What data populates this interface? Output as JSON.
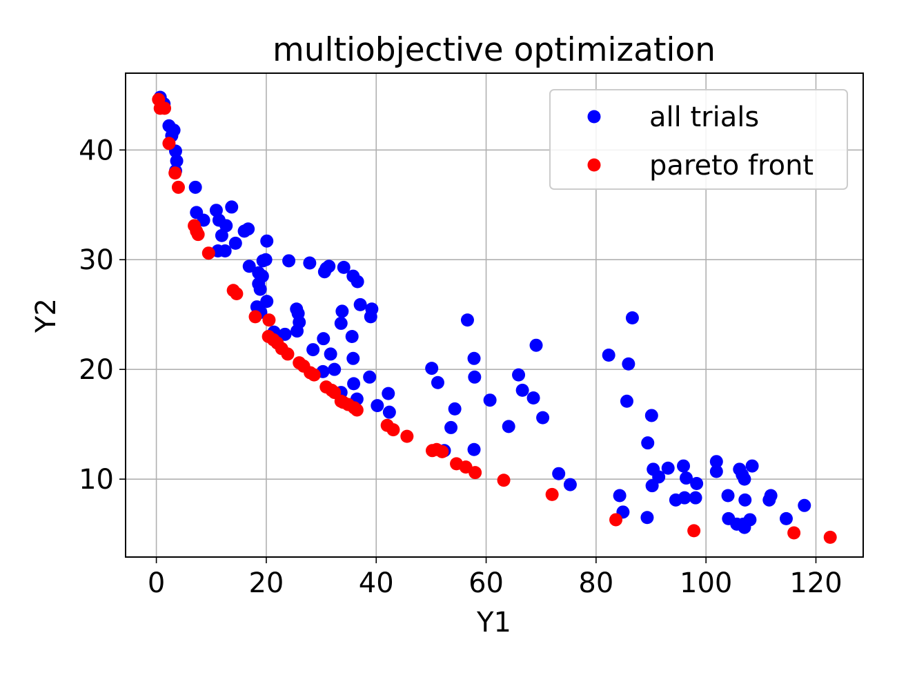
{
  "chart_data": {
    "type": "scatter",
    "title": "multiobjective optimization",
    "xlabel": "Y1",
    "ylabel": "Y2",
    "xlim": [
      -5.6,
      128.6
    ],
    "ylim": [
      2.9,
      47.0
    ],
    "xticks": [
      0,
      20,
      40,
      60,
      80,
      100,
      120
    ],
    "yticks": [
      10,
      20,
      30,
      40
    ],
    "grid": true,
    "legend_position": "top-right",
    "series": [
      {
        "name": "all trials",
        "color": "#0000ff",
        "points": [
          [
            0.7,
            44.8
          ],
          [
            1.4,
            44.2
          ],
          [
            2.3,
            42.2
          ],
          [
            3.2,
            41.8
          ],
          [
            2.8,
            41.3
          ],
          [
            3.5,
            39.9
          ],
          [
            3.7,
            39.0
          ],
          [
            3.5,
            38.1
          ],
          [
            7.1,
            36.6
          ],
          [
            7.3,
            34.3
          ],
          [
            8.6,
            33.6
          ],
          [
            10.9,
            34.5
          ],
          [
            13.7,
            34.8
          ],
          [
            11.4,
            33.6
          ],
          [
            12.7,
            33.1
          ],
          [
            16.0,
            32.6
          ],
          [
            16.7,
            32.8
          ],
          [
            11.9,
            32.2
          ],
          [
            14.4,
            31.5
          ],
          [
            12.5,
            30.8
          ],
          [
            11.2,
            30.8
          ],
          [
            20.1,
            31.7
          ],
          [
            16.9,
            29.4
          ],
          [
            19.4,
            29.9
          ],
          [
            19.9,
            30.0
          ],
          [
            18.6,
            28.8
          ],
          [
            19.3,
            28.5
          ],
          [
            18.6,
            27.8
          ],
          [
            18.9,
            27.3
          ],
          [
            24.1,
            29.9
          ],
          [
            27.9,
            29.7
          ],
          [
            30.9,
            29.2
          ],
          [
            31.4,
            29.4
          ],
          [
            30.6,
            28.9
          ],
          [
            34.1,
            29.3
          ],
          [
            35.8,
            28.5
          ],
          [
            36.6,
            28.0
          ],
          [
            18.3,
            25.7
          ],
          [
            20.1,
            26.2
          ],
          [
            19.0,
            25.2
          ],
          [
            25.5,
            25.5
          ],
          [
            25.8,
            25.1
          ],
          [
            33.8,
            25.3
          ],
          [
            37.1,
            25.9
          ],
          [
            39.2,
            25.5
          ],
          [
            39.0,
            24.8
          ],
          [
            26.0,
            24.3
          ],
          [
            33.6,
            24.2
          ],
          [
            25.6,
            23.5
          ],
          [
            21.4,
            23.4
          ],
          [
            23.4,
            23.2
          ],
          [
            35.6,
            23.0
          ],
          [
            30.4,
            22.8
          ],
          [
            28.5,
            21.8
          ],
          [
            31.7,
            21.4
          ],
          [
            35.8,
            21.0
          ],
          [
            32.4,
            20.0
          ],
          [
            30.3,
            19.8
          ],
          [
            38.8,
            19.3
          ],
          [
            35.9,
            18.7
          ],
          [
            40.2,
            16.7
          ],
          [
            42.2,
            17.8
          ],
          [
            42.4,
            16.1
          ],
          [
            36.5,
            17.3
          ],
          [
            33.6,
            17.9
          ],
          [
            56.6,
            24.5
          ],
          [
            57.8,
            21.0
          ],
          [
            50.1,
            20.1
          ],
          [
            51.2,
            18.8
          ],
          [
            57.9,
            19.3
          ],
          [
            60.7,
            17.2
          ],
          [
            54.3,
            16.4
          ],
          [
            53.6,
            14.7
          ],
          [
            52.4,
            12.6
          ],
          [
            57.8,
            12.7
          ],
          [
            69.1,
            22.2
          ],
          [
            65.9,
            19.5
          ],
          [
            66.6,
            18.1
          ],
          [
            68.6,
            17.4
          ],
          [
            70.3,
            15.6
          ],
          [
            64.1,
            14.8
          ],
          [
            73.2,
            10.5
          ],
          [
            75.3,
            9.5
          ],
          [
            86.6,
            24.7
          ],
          [
            82.3,
            21.3
          ],
          [
            85.9,
            20.5
          ],
          [
            85.6,
            17.1
          ],
          [
            90.1,
            15.8
          ],
          [
            89.4,
            13.3
          ],
          [
            90.4,
            10.9
          ],
          [
            90.2,
            9.4
          ],
          [
            91.4,
            10.2
          ],
          [
            93.1,
            11.0
          ],
          [
            95.9,
            11.2
          ],
          [
            96.4,
            10.1
          ],
          [
            98.3,
            9.6
          ],
          [
            94.5,
            8.1
          ],
          [
            96.1,
            8.3
          ],
          [
            98.1,
            8.3
          ],
          [
            84.3,
            8.5
          ],
          [
            84.9,
            7.0
          ],
          [
            89.3,
            6.5
          ],
          [
            101.9,
            11.6
          ],
          [
            101.9,
            10.7
          ],
          [
            106.1,
            10.9
          ],
          [
            106.6,
            10.4
          ],
          [
            108.4,
            11.2
          ],
          [
            107.0,
            10.0
          ],
          [
            104.0,
            8.5
          ],
          [
            107.1,
            8.1
          ],
          [
            111.5,
            8.1
          ],
          [
            111.8,
            8.5
          ],
          [
            104.1,
            6.4
          ],
          [
            105.6,
            5.9
          ],
          [
            106.8,
            5.9
          ],
          [
            107.0,
            5.6
          ],
          [
            108.0,
            6.3
          ],
          [
            114.6,
            6.4
          ],
          [
            117.9,
            7.6
          ]
        ]
      },
      {
        "name": "pareto front",
        "color": "#ff0000",
        "points": [
          [
            0.4,
            44.6
          ],
          [
            0.7,
            43.8
          ],
          [
            1.5,
            43.8
          ],
          [
            2.3,
            40.6
          ],
          [
            3.4,
            37.9
          ],
          [
            4.0,
            36.6
          ],
          [
            6.9,
            33.1
          ],
          [
            7.3,
            32.6
          ],
          [
            7.6,
            32.3
          ],
          [
            9.5,
            30.6
          ],
          [
            14.0,
            27.2
          ],
          [
            14.6,
            26.9
          ],
          [
            18.0,
            24.8
          ],
          [
            20.5,
            24.5
          ],
          [
            20.4,
            23.0
          ],
          [
            21.3,
            22.7
          ],
          [
            22.0,
            22.4
          ],
          [
            22.8,
            21.9
          ],
          [
            23.9,
            21.4
          ],
          [
            26.0,
            20.6
          ],
          [
            26.8,
            20.3
          ],
          [
            28.0,
            19.7
          ],
          [
            28.7,
            19.5
          ],
          [
            30.9,
            18.4
          ],
          [
            31.9,
            18.1
          ],
          [
            32.4,
            17.9
          ],
          [
            33.6,
            17.1
          ],
          [
            34.0,
            17.0
          ],
          [
            34.9,
            16.8
          ],
          [
            36.0,
            16.5
          ],
          [
            36.5,
            16.3
          ],
          [
            42.0,
            14.9
          ],
          [
            43.1,
            14.5
          ],
          [
            45.6,
            13.9
          ],
          [
            50.2,
            12.6
          ],
          [
            51.0,
            12.7
          ],
          [
            52.0,
            12.5
          ],
          [
            54.6,
            11.4
          ],
          [
            56.3,
            11.1
          ],
          [
            58.0,
            10.6
          ],
          [
            63.2,
            9.9
          ],
          [
            72.0,
            8.6
          ],
          [
            83.6,
            6.3
          ],
          [
            97.8,
            5.3
          ],
          [
            116.0,
            5.1
          ],
          [
            122.6,
            4.7
          ]
        ]
      }
    ]
  }
}
